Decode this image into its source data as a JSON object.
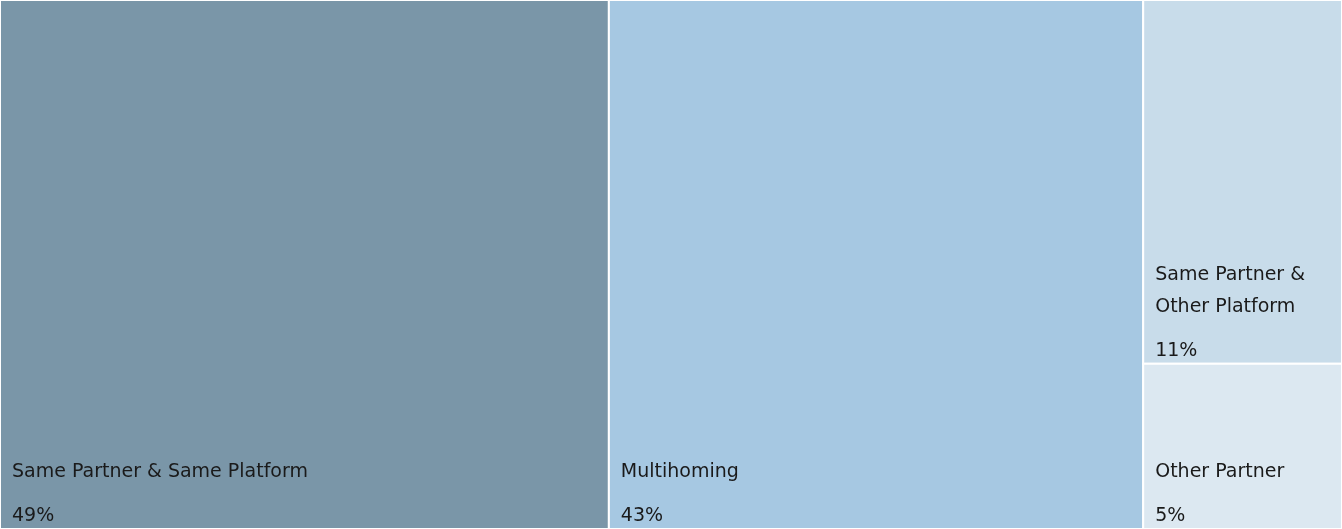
{
  "chart_data": {
    "type": "other",
    "categories": [
      "Same Partner & Same Platform",
      "Multihoming",
      "Same Partner & Other Platform",
      "Other Partner"
    ],
    "values": [
      49,
      43,
      11,
      5
    ],
    "value_labels": [
      "49%",
      "43%",
      "11%",
      "5%"
    ],
    "colors": [
      "#7a96a8",
      "#a6c8e2",
      "#c8dcea",
      "#dce8f1"
    ]
  }
}
